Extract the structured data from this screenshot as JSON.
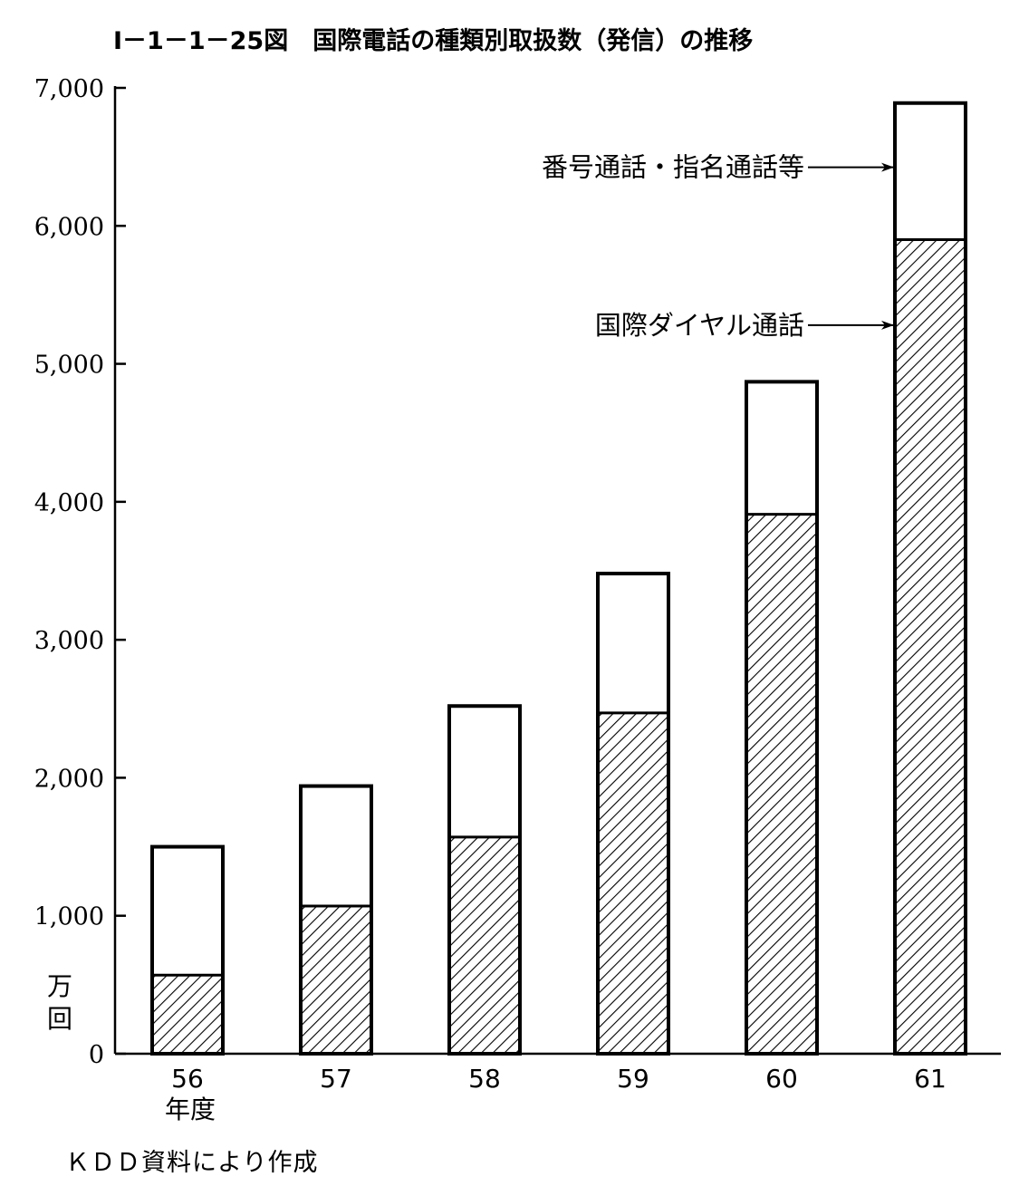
{
  "chart_data": {
    "type": "bar",
    "stacked": true,
    "title": "Ⅰ－1－1－25図　国際電話の種類別取扱数（発信）の推移",
    "ylabel": "万\n回",
    "xlabel": "年度",
    "categories": [
      "56",
      "57",
      "58",
      "59",
      "60",
      "61"
    ],
    "ylim": [
      0,
      7000
    ],
    "yticks": [
      0,
      1000,
      2000,
      3000,
      4000,
      5000,
      6000,
      7000
    ],
    "ytick_labels": [
      "0",
      "1,000",
      "2,000",
      "3,000",
      "4,000",
      "5,000",
      "6,000",
      "7,000"
    ],
    "series": [
      {
        "name": "国際ダイヤル通話",
        "values": [
          570,
          1070,
          1570,
          2470,
          3910,
          5900
        ],
        "fill": "hatched"
      },
      {
        "name": "番号通話・指名通話等",
        "values": [
          930,
          870,
          950,
          1010,
          960,
          990
        ],
        "fill": "white"
      }
    ],
    "grid": false,
    "legend": "annotations with arrows pointing to top bar",
    "source": "ＫＤＤ資料により作成"
  }
}
